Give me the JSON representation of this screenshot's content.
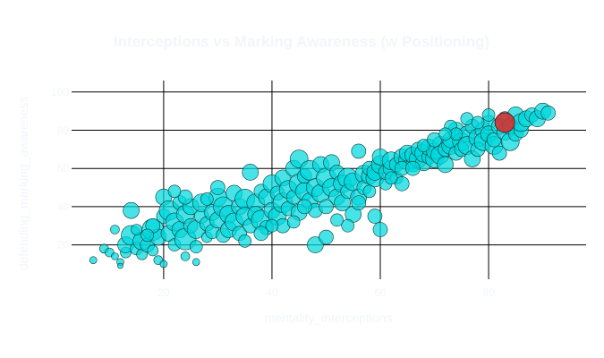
{
  "chart_data": {
    "type": "scatter",
    "title": "Interceptions vs Marking Awareness (w Positioning)",
    "xlabel": "mentality_interceptions",
    "ylabel": "defending_marking_awareness",
    "xlim": [
      3,
      98
    ],
    "ylim": [
      2,
      106
    ],
    "x_ticks": [
      20,
      40,
      60,
      80
    ],
    "y_ticks": [
      20,
      40,
      60,
      80,
      100
    ],
    "grid": true,
    "colors": {
      "background": "#ffffff",
      "grid": "#000000",
      "text": "#f2f5fa",
      "marker": "#00d8dc",
      "marker_edge": "#0a3a3a",
      "highlight": "#d62f2f"
    },
    "highlight_point": {
      "x": 83,
      "y": 84,
      "size": 11
    },
    "series": [
      {
        "points": [
          [
            7,
            12,
            4
          ],
          [
            9,
            18,
            5
          ],
          [
            10,
            16,
            5
          ],
          [
            11,
            28,
            5
          ],
          [
            11,
            14,
            4
          ],
          [
            12,
            11,
            4
          ],
          [
            12,
            9,
            3
          ],
          [
            13,
            16,
            6
          ],
          [
            13,
            20,
            9
          ],
          [
            14,
            38,
            9
          ],
          [
            14,
            25,
            11
          ],
          [
            15,
            18,
            7
          ],
          [
            16,
            22,
            10
          ],
          [
            16,
            15,
            6
          ],
          [
            17,
            20,
            8
          ],
          [
            18,
            28,
            12
          ],
          [
            18,
            17,
            6
          ],
          [
            19,
            24,
            9
          ],
          [
            19,
            12,
            5
          ],
          [
            20,
            10,
            4
          ],
          [
            20,
            35,
            8
          ],
          [
            20,
            45,
            9
          ],
          [
            21,
            38,
            11
          ],
          [
            21,
            26,
            9
          ],
          [
            22,
            20,
            7
          ],
          [
            22,
            32,
            10
          ],
          [
            23,
            42,
            8
          ],
          [
            23,
            28,
            9
          ],
          [
            24,
            36,
            10
          ],
          [
            24,
            23,
            12
          ],
          [
            24,
            14,
            5
          ],
          [
            25,
            40,
            9
          ],
          [
            25,
            30,
            8
          ],
          [
            26,
            28,
            10
          ],
          [
            26,
            19,
            7
          ],
          [
            26,
            11,
            4
          ],
          [
            27,
            35,
            8
          ],
          [
            27,
            42,
            10
          ],
          [
            28,
            31,
            8
          ],
          [
            28,
            24,
            6
          ],
          [
            29,
            37,
            9
          ],
          [
            29,
            27,
            8
          ],
          [
            30,
            45,
            10
          ],
          [
            30,
            33,
            9
          ],
          [
            31,
            25,
            8
          ],
          [
            31,
            40,
            11
          ],
          [
            32,
            36,
            10
          ],
          [
            32,
            28,
            9
          ],
          [
            33,
            47,
            9
          ],
          [
            33,
            32,
            10
          ],
          [
            34,
            40,
            9
          ],
          [
            34,
            26,
            8
          ],
          [
            35,
            44,
            11
          ],
          [
            35,
            35,
            10
          ],
          [
            36,
            58,
            9
          ],
          [
            36,
            30,
            8
          ],
          [
            37,
            42,
            10
          ],
          [
            37,
            36,
            9
          ],
          [
            38,
            48,
            8
          ],
          [
            38,
            33,
            11
          ],
          [
            39,
            45,
            9
          ],
          [
            39,
            29,
            8
          ],
          [
            40,
            52,
            10
          ],
          [
            40,
            38,
            9
          ],
          [
            41,
            47,
            8
          ],
          [
            41,
            35,
            10
          ],
          [
            42,
            55,
            9
          ],
          [
            42,
            42,
            11
          ],
          [
            43,
            39,
            8
          ],
          [
            43,
            49,
            10
          ],
          [
            44,
            60,
            9
          ],
          [
            44,
            45,
            8
          ],
          [
            45,
            65,
            10
          ],
          [
            45,
            52,
            11
          ],
          [
            45,
            37,
            9
          ],
          [
            46,
            48,
            10
          ],
          [
            46,
            56,
            8
          ],
          [
            47,
            43,
            9
          ],
          [
            47,
            59,
            11
          ],
          [
            48,
            50,
            10
          ],
          [
            48,
            20,
            9
          ],
          [
            48,
            38,
            8
          ],
          [
            49,
            62,
            9
          ],
          [
            49,
            47,
            10
          ],
          [
            50,
            24,
            8
          ],
          [
            50,
            55,
            11
          ],
          [
            51,
            63,
            9
          ],
          [
            51,
            50,
            10
          ],
          [
            52,
            45,
            9
          ],
          [
            52,
            58,
            8
          ],
          [
            53,
            52,
            10
          ],
          [
            53,
            42,
            9
          ],
          [
            54,
            55,
            11
          ],
          [
            54,
            48,
            8
          ],
          [
            55,
            36,
            9
          ],
          [
            55,
            53,
            10
          ],
          [
            56,
            69,
            8
          ],
          [
            56,
            45,
            9
          ],
          [
            57,
            57,
            10
          ],
          [
            57,
            50,
            8
          ],
          [
            58,
            56,
            9
          ],
          [
            58,
            60,
            8
          ],
          [
            59,
            55,
            10
          ],
          [
            59,
            58,
            9
          ],
          [
            60,
            28,
            8
          ],
          [
            60,
            62,
            10
          ],
          [
            60,
            66,
            9
          ],
          [
            61,
            52,
            7
          ],
          [
            61,
            58,
            8
          ],
          [
            62,
            60,
            9
          ],
          [
            62,
            64,
            10
          ],
          [
            63,
            62,
            8
          ],
          [
            63,
            55,
            7
          ],
          [
            64,
            66,
            9
          ],
          [
            64,
            52,
            8
          ],
          [
            65,
            64,
            10
          ],
          [
            65,
            68,
            9
          ],
          [
            66,
            62,
            8
          ],
          [
            66,
            67,
            9
          ],
          [
            67,
            65,
            10
          ],
          [
            67,
            70,
            8
          ],
          [
            68,
            63,
            9
          ],
          [
            68,
            68,
            10
          ],
          [
            69,
            66,
            8
          ],
          [
            69,
            71,
            9
          ],
          [
            70,
            65,
            10
          ],
          [
            70,
            69,
            9
          ],
          [
            71,
            73,
            8
          ],
          [
            71,
            67,
            10
          ],
          [
            72,
            62,
            9
          ],
          [
            72,
            70,
            8
          ],
          [
            73,
            72,
            10
          ],
          [
            73,
            75,
            9
          ],
          [
            74,
            68,
            8
          ],
          [
            74,
            80,
            9
          ],
          [
            75,
            74,
            10
          ],
          [
            75,
            70,
            8
          ],
          [
            76,
            78,
            9
          ],
          [
            76,
            72,
            10
          ],
          [
            77,
            82,
            8
          ],
          [
            77,
            65,
            9
          ],
          [
            78,
            76,
            10
          ],
          [
            78,
            70,
            8
          ],
          [
            79,
            80,
            9
          ],
          [
            79,
            74,
            10
          ],
          [
            80,
            84,
            8
          ],
          [
            80,
            78,
            9
          ],
          [
            81,
            72,
            10
          ],
          [
            81,
            75,
            8
          ],
          [
            82,
            82,
            9
          ],
          [
            82,
            68,
            8
          ],
          [
            83,
            79,
            9
          ],
          [
            83,
            86,
            8
          ],
          [
            84,
            74,
            10
          ],
          [
            84,
            82,
            9
          ],
          [
            85,
            78,
            8
          ],
          [
            85,
            88,
            9
          ],
          [
            86,
            80,
            8
          ],
          [
            86,
            84,
            10
          ],
          [
            87,
            86,
            9
          ],
          [
            88,
            88,
            8
          ],
          [
            89,
            86,
            9
          ],
          [
            90,
            90,
            9
          ],
          [
            91,
            89,
            8
          ],
          [
            73,
            82,
            7
          ],
          [
            74,
            78,
            7
          ],
          [
            76,
            86,
            7
          ],
          [
            64,
            60,
            8
          ],
          [
            68,
            72,
            7
          ],
          [
            70,
            75,
            8
          ],
          [
            72,
            78,
            7
          ],
          [
            78,
            84,
            7
          ],
          [
            80,
            88,
            7
          ],
          [
            62,
            55,
            7
          ],
          [
            66,
            60,
            8
          ],
          [
            30,
            50,
            8
          ],
          [
            28,
            44,
            7
          ],
          [
            24,
            45,
            8
          ],
          [
            22,
            48,
            7
          ],
          [
            18,
            30,
            8
          ],
          [
            17,
            25,
            7
          ],
          [
            15,
            28,
            6
          ],
          [
            42,
            30,
            8
          ],
          [
            44,
            32,
            7
          ],
          [
            46,
            40,
            8
          ],
          [
            50,
            40,
            8
          ],
          [
            52,
            33,
            7
          ],
          [
            56,
            42,
            8
          ],
          [
            54,
            30,
            7
          ],
          [
            58,
            48,
            7
          ],
          [
            59,
            35,
            8
          ],
          [
            40,
            30,
            7
          ],
          [
            38,
            26,
            8
          ],
          [
            35,
            22,
            7
          ]
        ]
      }
    ]
  }
}
